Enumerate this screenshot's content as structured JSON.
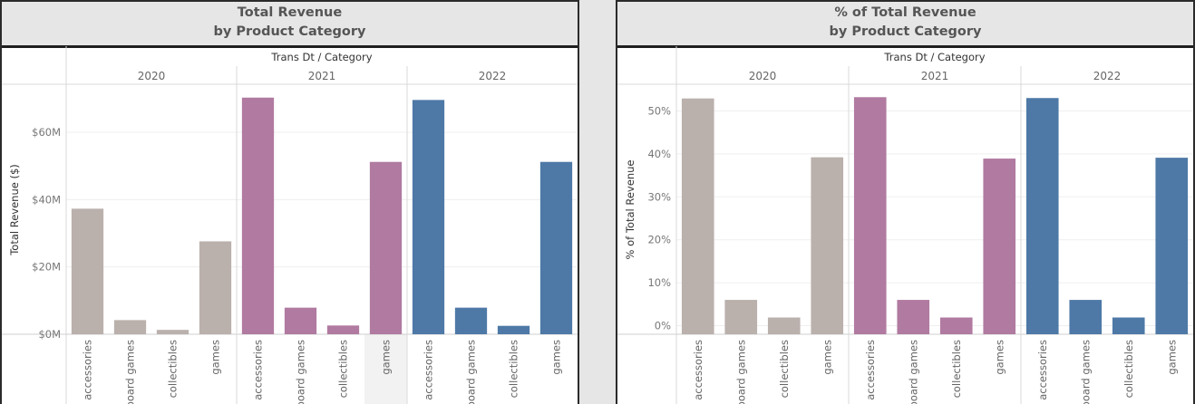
{
  "colors": {
    "2020": "#bab0ac",
    "2021": "#b07aa1",
    "2022": "#4e79a7"
  },
  "charts": [
    {
      "id": "left",
      "title_line1": "Total Revenue",
      "title_line2": "by Product Category",
      "header_label": "Trans Dt / Category",
      "ylabel": "Total Revenue ($)",
      "chart_data": {
        "type": "bar",
        "title": "Total Revenue by Product Category",
        "xlabel": "Trans Dt / Category",
        "ylabel": "Total Revenue ($)",
        "years": [
          "2020",
          "2021",
          "2022"
        ],
        "categories": [
          "accessories",
          "board games",
          "collectibles",
          "games"
        ],
        "series": [
          {
            "name": "2020",
            "values": [
              37.3,
              4.2,
              1.3,
              27.6
            ]
          },
          {
            "name": "2021",
            "values": [
              70.3,
              7.9,
              2.6,
              51.2
            ]
          },
          {
            "name": "2022",
            "values": [
              69.6,
              7.9,
              2.5,
              51.2
            ]
          }
        ],
        "ylim": [
          0,
          74
        ],
        "yticks": [
          0,
          20,
          40,
          60
        ],
        "ytick_labels": [
          "$0M",
          "$20M",
          "$40M",
          "$60M"
        ],
        "grid": true,
        "highlighted_category": {
          "year": "2021",
          "category": "games"
        }
      }
    },
    {
      "id": "right",
      "title_line1": "% of Total Revenue",
      "title_line2": "by Product Category",
      "header_label": "Trans Dt / Category",
      "ylabel": "% of Total Revenue",
      "chart_data": {
        "type": "bar",
        "title": "% of Total Revenue by Product Category",
        "xlabel": "Trans Dt / Category",
        "ylabel": "% of Total Revenue",
        "years": [
          "2020",
          "2021",
          "2022"
        ],
        "categories": [
          "accessories",
          "board games",
          "collectibles",
          "games"
        ],
        "series": [
          {
            "name": "2020",
            "values": [
              52.9,
              6.0,
              1.9,
              39.2
            ]
          },
          {
            "name": "2021",
            "values": [
              53.2,
              6.0,
              1.9,
              38.9
            ]
          },
          {
            "name": "2022",
            "values": [
              53.0,
              6.0,
              1.9,
              39.1
            ]
          }
        ],
        "ylim": [
          -2,
          56
        ],
        "yticks": [
          0,
          10,
          20,
          30,
          40,
          50
        ],
        "ytick_labels": [
          "0%",
          "10%",
          "20%",
          "30%",
          "40%",
          "50%"
        ],
        "grid": true
      }
    }
  ]
}
